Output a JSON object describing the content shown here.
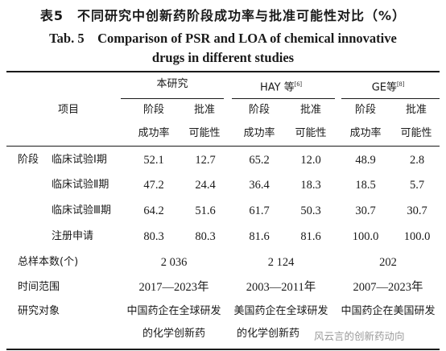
{
  "title": {
    "cn": "表5　不同研究中创新药阶段成功率与批准可能性对比（%）",
    "en_line1": "Tab. 5　Comparison of PSR and LOA of chemical innovative",
    "en_line2": "drugs in different studies"
  },
  "header": {
    "item_label": "项目",
    "groups": [
      {
        "name": "本研究",
        "ref": ""
      },
      {
        "name": "HAY 等",
        "ref": "[6]"
      },
      {
        "name": "GE等",
        "ref": "[8]"
      }
    ],
    "sub_psr": [
      "阶段",
      "成功率"
    ],
    "sub_loa": [
      "批准",
      "可能性"
    ]
  },
  "rows_phase_label": "阶段",
  "rows": [
    {
      "label": "临床试验Ⅰ期",
      "values": [
        "52.1",
        "12.7",
        "65.2",
        "12.0",
        "48.9",
        "2.8"
      ]
    },
    {
      "label": "临床试验Ⅱ期",
      "values": [
        "47.2",
        "24.4",
        "36.4",
        "18.3",
        "18.5",
        "5.7"
      ]
    },
    {
      "label": "临床试验Ⅲ期",
      "values": [
        "64.2",
        "51.6",
        "61.7",
        "50.3",
        "30.7",
        "30.7"
      ]
    },
    {
      "label": "注册申请",
      "values": [
        "80.3",
        "80.3",
        "81.6",
        "81.6",
        "100.0",
        "100.0"
      ]
    }
  ],
  "summary": [
    {
      "label": "总样本数(个)",
      "values": [
        "2 036",
        "2 124",
        "202"
      ]
    },
    {
      "label": "时间范围",
      "values": [
        "2017—2023年",
        "2003—2011年",
        "2007—2023年"
      ]
    }
  ],
  "object_row": {
    "label": "研究对象",
    "values": [
      [
        "中国药企在全球研发",
        "的化学创新药"
      ],
      [
        "美国药企在全球研发",
        "的化学创新药"
      ],
      [
        "中国药企在美国研发",
        ""
      ]
    ]
  },
  "watermark": "风云言的创新药动向"
}
